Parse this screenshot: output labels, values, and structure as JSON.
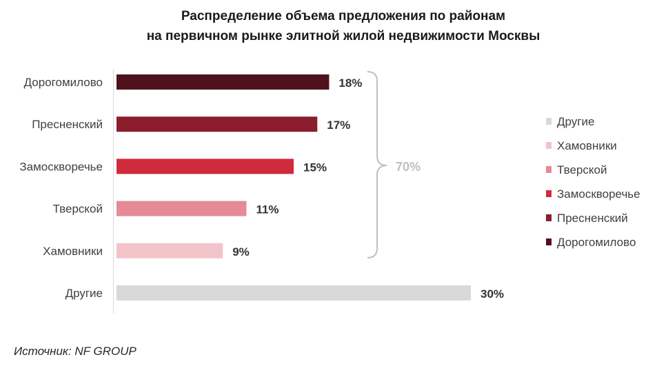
{
  "chart_data": {
    "type": "bar",
    "orientation": "horizontal",
    "title": [
      "Распределение объема предложения по районам",
      "на первичном рынке элитной жилой недвижимости Москвы"
    ],
    "categories": [
      "Дорогомилово",
      "Пресненский",
      "Замоскворечье",
      "Тверской",
      "Хамовники",
      "Другие"
    ],
    "values": [
      18,
      17,
      15,
      11,
      9,
      30
    ],
    "value_labels": [
      "18%",
      "17%",
      "15%",
      "11%",
      "9%",
      "30%"
    ],
    "colors": [
      "#4f111b",
      "#8c1d2d",
      "#d02b3c",
      "#e68a96",
      "#f2c4ca",
      "#d9d9d9"
    ],
    "xlim": [
      0,
      30
    ],
    "grid": false,
    "annotation": {
      "label": "70%",
      "span": [
        "Дорогомилово",
        "Хамовники"
      ],
      "color": "#bfbfbf"
    },
    "legend": {
      "placement": "right",
      "entries": [
        {
          "label": "Другие",
          "color": "#d9d9d9"
        },
        {
          "label": "Хамовники",
          "color": "#f2c4ca"
        },
        {
          "label": "Тверской",
          "color": "#e68a96"
        },
        {
          "label": "Замоскворечье",
          "color": "#d02b3c"
        },
        {
          "label": "Пресненский",
          "color": "#8c1d2d"
        },
        {
          "label": "Дорогомилово",
          "color": "#4f111b"
        }
      ]
    }
  },
  "source": "Источник: NF GROUP"
}
